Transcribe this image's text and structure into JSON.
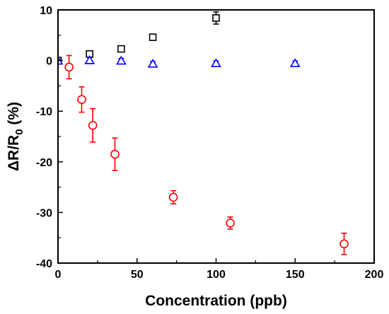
{
  "chart_data": {
    "type": "scatter",
    "title": "",
    "xlabel": "Concentration (ppb)",
    "ylabel": {
      "main": "ΔR/R",
      "sub": "0",
      "suffix": " (%)"
    },
    "xlim": [
      0,
      200
    ],
    "ylim": [
      -40,
      10
    ],
    "xticks": [
      0,
      50,
      100,
      150,
      200
    ],
    "yticks": [
      -40,
      -30,
      -20,
      -10,
      0,
      10
    ],
    "grid": false,
    "legend": "none",
    "series": [
      {
        "marker": "square",
        "color": "#000000",
        "points": [
          {
            "x": 0,
            "y": 0,
            "err": 0.2
          },
          {
            "x": 20,
            "y": 1.3,
            "err": 0.3
          },
          {
            "x": 40,
            "y": 2.3,
            "err": 0.3
          },
          {
            "x": 60,
            "y": 4.6,
            "err": 0.4
          },
          {
            "x": 100,
            "y": 8.4,
            "err": 1.2
          }
        ]
      },
      {
        "marker": "triangle",
        "color": "#0000ff",
        "points": [
          {
            "x": 0,
            "y": -0.1,
            "err": 0.3
          },
          {
            "x": 20,
            "y": 0.0,
            "err": 0.6
          },
          {
            "x": 40,
            "y": -0.1,
            "err": 0.5
          },
          {
            "x": 60,
            "y": -0.7,
            "err": 0.5
          },
          {
            "x": 100,
            "y": -0.6,
            "err": 0.5
          },
          {
            "x": 150,
            "y": -0.6,
            "err": 0.5
          }
        ]
      },
      {
        "marker": "circle",
        "color": "#ff0000",
        "points": [
          {
            "x": 7,
            "y": -1.3,
            "err": 2.3
          },
          {
            "x": 15,
            "y": -7.7,
            "err": 2.5
          },
          {
            "x": 22,
            "y": -12.8,
            "err": 3.3
          },
          {
            "x": 36,
            "y": -18.5,
            "err": 3.2
          },
          {
            "x": 73,
            "y": -27.0,
            "err": 1.3
          },
          {
            "x": 109,
            "y": -32.1,
            "err": 1.2
          },
          {
            "x": 181,
            "y": -36.2,
            "err": 2.1
          }
        ]
      }
    ]
  }
}
